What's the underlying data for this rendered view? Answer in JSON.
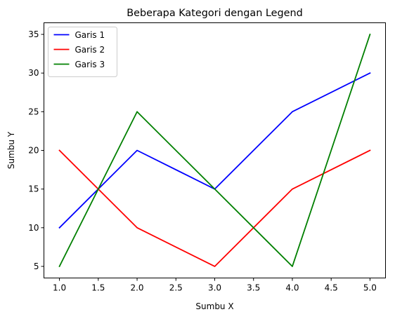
{
  "chart_data": {
    "type": "line",
    "title": "Beberapa Kategori dengan Legend",
    "xlabel": "Sumbu X",
    "ylabel": "Sumbu Y",
    "x": [
      1,
      2,
      3,
      4,
      5
    ],
    "xlim": [
      0.8,
      5.2
    ],
    "ylim": [
      3.5,
      36.5
    ],
    "xticks": [
      1.0,
      1.5,
      2.0,
      2.5,
      3.0,
      3.5,
      4.0,
      4.5,
      5.0
    ],
    "xtick_labels": [
      "1.0",
      "1.5",
      "2.0",
      "2.5",
      "3.0",
      "3.5",
      "4.0",
      "4.5",
      "5.0"
    ],
    "yticks": [
      5,
      10,
      15,
      20,
      25,
      30,
      35
    ],
    "ytick_labels": [
      "5",
      "10",
      "15",
      "20",
      "25",
      "30",
      "35"
    ],
    "grid": false,
    "legend_position": "top-left",
    "series": [
      {
        "name": "Garis 1",
        "color": "#0000ff",
        "values": [
          10,
          20,
          15,
          25,
          30
        ]
      },
      {
        "name": "Garis 2",
        "color": "#ff0000",
        "values": [
          20,
          10,
          5,
          15,
          20
        ]
      },
      {
        "name": "Garis 3",
        "color": "#008000",
        "values": [
          5,
          25,
          15,
          5,
          35
        ]
      }
    ]
  }
}
